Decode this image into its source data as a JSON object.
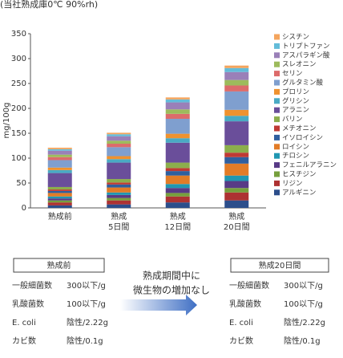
{
  "chart_data": {
    "type": "stacked-bar",
    "title": "(当社熟成庫0℃ 90%rh)",
    "y_label": "mg/100g",
    "categories": [
      "熟成前",
      "熟成\n5日間",
      "熟成\n12日間",
      "熟成\n20日間"
    ],
    "ylim": [
      0,
      350
    ],
    "yticks": [
      0,
      50,
      100,
      150,
      200,
      250,
      300,
      350
    ],
    "legend": "right",
    "series": [
      {
        "name": "シスチン",
        "color": "#f4a55e",
        "values": [
          3,
          3,
          4,
          5
        ]
      },
      {
        "name": "トリプトファン",
        "color": "#63bcd9",
        "values": [
          3,
          4,
          6,
          8
        ]
      },
      {
        "name": "アスパラギン酸",
        "color": "#9a80b8",
        "values": [
          8,
          9,
          14,
          16
        ]
      },
      {
        "name": "スレオニン",
        "color": "#9dbb5c",
        "values": [
          5,
          6,
          9,
          11
        ]
      },
      {
        "name": "セリン",
        "color": "#dc6b6b",
        "values": [
          6,
          7,
          10,
          12
        ]
      },
      {
        "name": "グルタミン酸",
        "color": "#7f9fcf",
        "values": [
          15,
          18,
          30,
          37
        ]
      },
      {
        "name": "プロリン",
        "color": "#ef922f",
        "values": [
          5,
          6,
          9,
          12
        ]
      },
      {
        "name": "グリシン",
        "color": "#4aaac4",
        "values": [
          6,
          7,
          9,
          11
        ]
      },
      {
        "name": "アラニン",
        "color": "#6a4e9a",
        "values": [
          28,
          33,
          40,
          48
        ]
      },
      {
        "name": "バリン",
        "color": "#8cae4c",
        "values": [
          5,
          7,
          11,
          15
        ]
      },
      {
        "name": "メチオニン",
        "color": "#bf3a34",
        "values": [
          3,
          4,
          6,
          9
        ]
      },
      {
        "name": "イソロイシン",
        "color": "#2f5f9f",
        "values": [
          4,
          6,
          9,
          13
        ]
      },
      {
        "name": "ロイシン",
        "color": "#e27c27",
        "values": [
          7,
          10,
          17,
          24
        ]
      },
      {
        "name": "チロシン",
        "color": "#2097b2",
        "values": [
          4,
          5,
          8,
          11
        ]
      },
      {
        "name": "フェニルアラニン",
        "color": "#583a86",
        "values": [
          4,
          6,
          10,
          14
        ]
      },
      {
        "name": "ヒスチジン",
        "color": "#769f3c",
        "values": [
          4,
          5,
          7,
          9
        ]
      },
      {
        "name": "リジン",
        "color": "#ad3232",
        "values": [
          6,
          8,
          12,
          16
        ]
      },
      {
        "name": "アルギニン",
        "color": "#2c4e8b",
        "values": [
          5,
          7,
          11,
          15
        ]
      }
    ]
  },
  "comparison": {
    "before": {
      "title": "熟成前",
      "rows": [
        [
          "一般細菌数",
          "300以下/g"
        ],
        [
          "乳酸菌数",
          "100以下/g"
        ],
        [
          "E. coli",
          "陰性/2.22g"
        ],
        [
          "カビ数",
          "陰性/0.1g"
        ]
      ]
    },
    "note": [
      "熟成期間中に",
      "微生物の増加なし"
    ],
    "after": {
      "title": "熟成20日間",
      "rows": [
        [
          "一般細菌数",
          "300以下/g"
        ],
        [
          "乳酸菌数",
          "100以下/g"
        ],
        [
          "E. coli",
          "陰性/2.22g"
        ],
        [
          "カビ数",
          "陰性/0.1g"
        ]
      ]
    }
  }
}
